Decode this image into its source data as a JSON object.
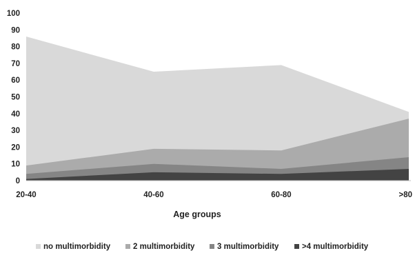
{
  "chart_data": {
    "type": "area",
    "stacked": false,
    "categories": [
      "20-40",
      "40-60",
      "60-80",
      ">80"
    ],
    "xlabel": "Age groups",
    "ylabel": "",
    "ylim": [
      0,
      100
    ],
    "yticks": [
      0,
      10,
      20,
      30,
      40,
      50,
      60,
      70,
      80,
      90,
      100
    ],
    "grid": false,
    "legend_position": "bottom",
    "series": [
      {
        "name": "no multimorbidity",
        "color": "#d9d9d9",
        "values": [
          86,
          65,
          69,
          41
        ]
      },
      {
        "name": "2 multimorbidity",
        "color": "#ababab",
        "values": [
          9,
          19,
          18,
          37
        ]
      },
      {
        "name": "3 multimorbidity",
        "color": "#858585",
        "values": [
          4,
          10,
          7,
          14
        ]
      },
      {
        "name": ">4 multimorbidity",
        "color": "#434343",
        "values": [
          1,
          5,
          4,
          7
        ]
      }
    ]
  }
}
